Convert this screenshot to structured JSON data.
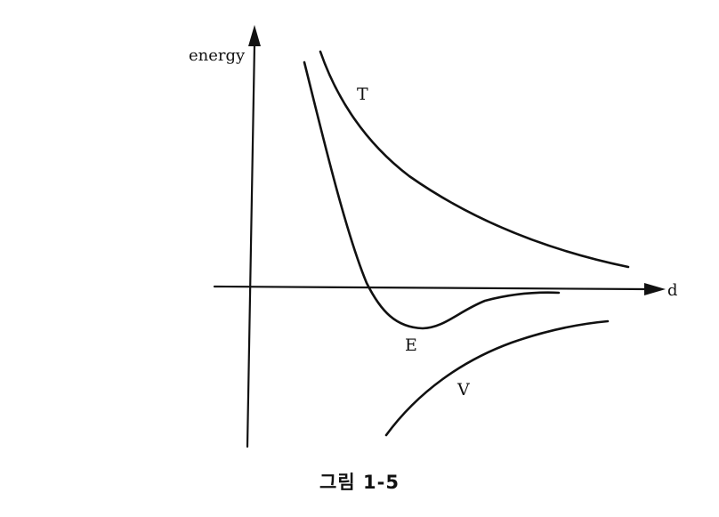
{
  "figure": {
    "y_axis_label": "energy",
    "x_axis_label": "d",
    "curves": [
      {
        "name": "T"
      },
      {
        "name": "E"
      },
      {
        "name": "V"
      }
    ],
    "caption": "그림 1-5"
  }
}
